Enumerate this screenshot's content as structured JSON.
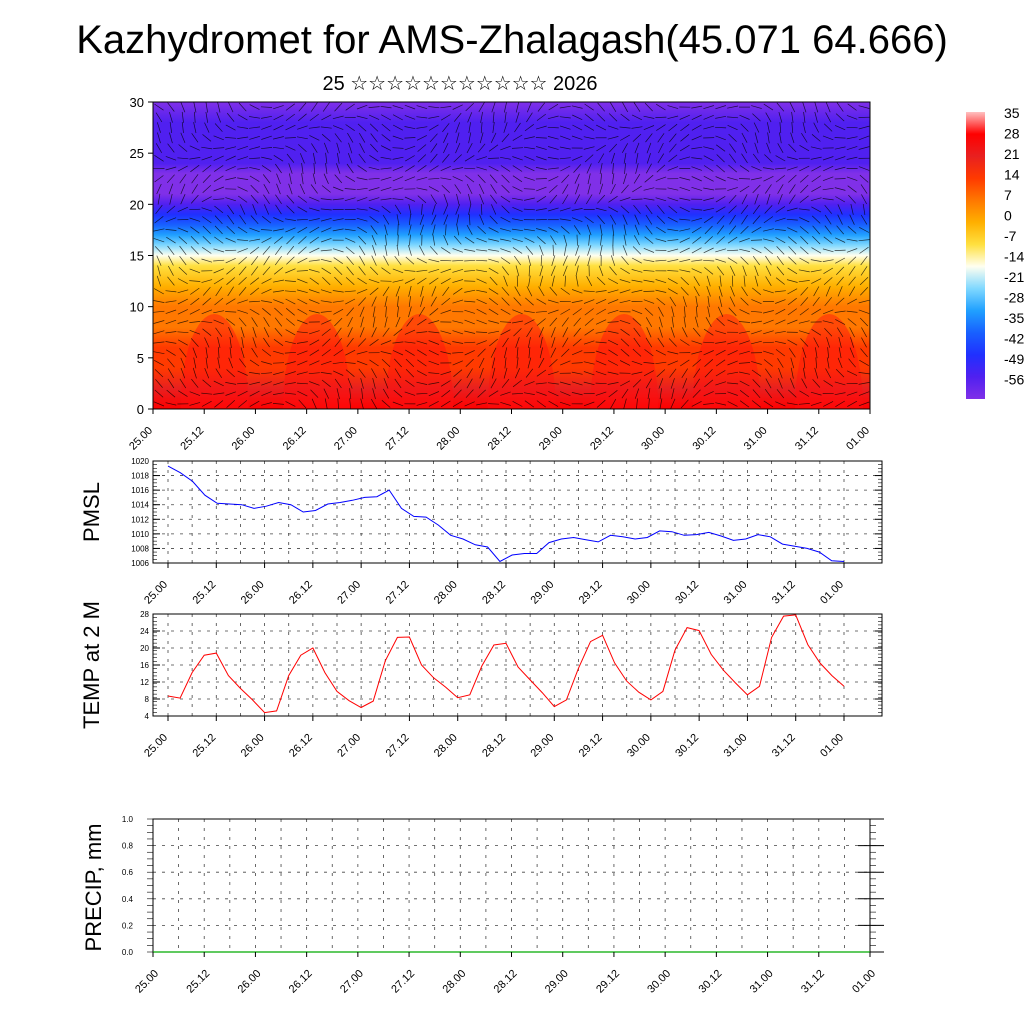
{
  "title": "Kazhydromet for AMS-Zhalagash(45.071 64.666)",
  "subtitle": "25 ☆☆☆☆☆☆☆☆☆☆☆ 2026",
  "time_labels": [
    "25.00",
    "25.12",
    "26.00",
    "26.12",
    "27.00",
    "27.12",
    "28.00",
    "28.12",
    "29.00",
    "29.12",
    "30.00",
    "30.12",
    "31.00",
    "31.12",
    "01.00"
  ],
  "colors": {
    "pmsl_line": "#0000ff",
    "temp_line": "#ff0000",
    "precip_line": "#00aa00",
    "frame": "#000000"
  },
  "chart_data": [
    {
      "type": "heatmap",
      "name": "temperature-height-section",
      "title": "",
      "xlabel": "",
      "ylabel": "",
      "ylim": [
        0,
        30
      ],
      "yticks": [
        0,
        5,
        10,
        15,
        20,
        25,
        30
      ],
      "colorbar": {
        "labels": [
          "35",
          "28",
          "21",
          "14",
          "7",
          "0",
          "-7",
          "-14",
          "-21",
          "-28",
          "-35",
          "-42",
          "-49",
          "-56"
        ],
        "colors": [
          "#ffc0c0",
          "#ff0000",
          "#e82020",
          "#ff3a00",
          "#ff7800",
          "#ffb000",
          "#ffe040",
          "#fffff0",
          "#80d8ff",
          "#20a0ff",
          "#1860ff",
          "#2030ff",
          "#5020f0",
          "#8030e8"
        ]
      },
      "profile": {
        "heights": [
          0,
          2,
          4,
          6,
          8,
          10,
          12,
          14,
          15,
          16,
          17,
          18,
          19,
          20,
          21,
          22,
          23,
          24,
          26,
          28,
          30
        ],
        "temps": [
          25,
          22,
          17,
          13,
          9,
          5,
          -1,
          -8,
          -14,
          -20,
          -28,
          -36,
          -44,
          -50,
          -55,
          -60,
          -58,
          -52,
          -48,
          -50,
          -54
        ]
      }
    },
    {
      "type": "line",
      "name": "pmsl",
      "ylabel": "PMSL",
      "ylim": [
        1006,
        1020
      ],
      "yticks": [
        1006,
        1008,
        1010,
        1012,
        1014,
        1016,
        1018,
        1020
      ],
      "series": [
        {
          "name": "PMSL",
          "values": [
            1019.3,
            1018.4,
            1017.2,
            1015.3,
            1014.2,
            1014.1,
            1014.0,
            1013.5,
            1013.8,
            1014.3,
            1014.0,
            1013.0,
            1013.2,
            1014.1,
            1014.3,
            1014.6,
            1015.0,
            1015.1,
            1016.0,
            1013.5,
            1012.4,
            1012.3,
            1011.2,
            1009.8,
            1009.3,
            1008.5,
            1008.2,
            1006.2,
            1007.1,
            1007.3,
            1007.3,
            1008.8,
            1009.3,
            1009.5,
            1009.2,
            1008.9,
            1009.8,
            1009.6,
            1009.3,
            1009.5,
            1010.4,
            1010.3,
            1009.8,
            1009.9,
            1010.2,
            1009.7,
            1009.1,
            1009.3,
            1009.9,
            1009.6,
            1008.6,
            1008.3,
            1008.0,
            1007.5,
            1006.3,
            1006.2
          ]
        }
      ]
    },
    {
      "type": "line",
      "name": "temp2m",
      "ylabel": "TEMP at 2 M",
      "ylim": [
        4,
        28
      ],
      "yticks": [
        4,
        8,
        12,
        16,
        20,
        24,
        28
      ],
      "series": [
        {
          "name": "TEMP",
          "values": [
            8.7,
            8.2,
            14.2,
            18.3,
            18.8,
            13.5,
            10.5,
            7.8,
            4.8,
            5.2,
            13.5,
            18.3,
            20.0,
            14.2,
            9.8,
            7.6,
            6.0,
            7.5,
            17.0,
            22.5,
            22.6,
            16.0,
            13.0,
            10.8,
            8.3,
            9.0,
            15.8,
            20.7,
            21.1,
            15.5,
            12.5,
            9.5,
            6.2,
            7.8,
            15.2,
            21.5,
            23.0,
            16.5,
            12.2,
            9.6,
            7.8,
            9.8,
            19.5,
            24.8,
            24.1,
            18.5,
            14.8,
            11.8,
            9.0,
            11.0,
            22.5,
            27.5,
            27.8,
            20.8,
            16.5,
            13.5,
            11.0
          ]
        }
      ]
    },
    {
      "type": "line",
      "name": "precip",
      "ylabel": "PRECIP, mm",
      "ylim": [
        0,
        1
      ],
      "yticks": [
        "0.0",
        "0.2",
        "0.4",
        "0.6",
        "0.8",
        "1.0"
      ],
      "series": [
        {
          "name": "PRECIP",
          "values": [
            0,
            0,
            0,
            0,
            0,
            0,
            0,
            0,
            0,
            0,
            0,
            0,
            0,
            0,
            0,
            0,
            0,
            0,
            0,
            0,
            0,
            0,
            0,
            0,
            0,
            0,
            0,
            0,
            0,
            0,
            0,
            0,
            0,
            0,
            0,
            0,
            0,
            0,
            0,
            0,
            0,
            0,
            0,
            0,
            0,
            0,
            0,
            0,
            0,
            0,
            0,
            0,
            0,
            0,
            0,
            0,
            0
          ]
        }
      ]
    }
  ]
}
